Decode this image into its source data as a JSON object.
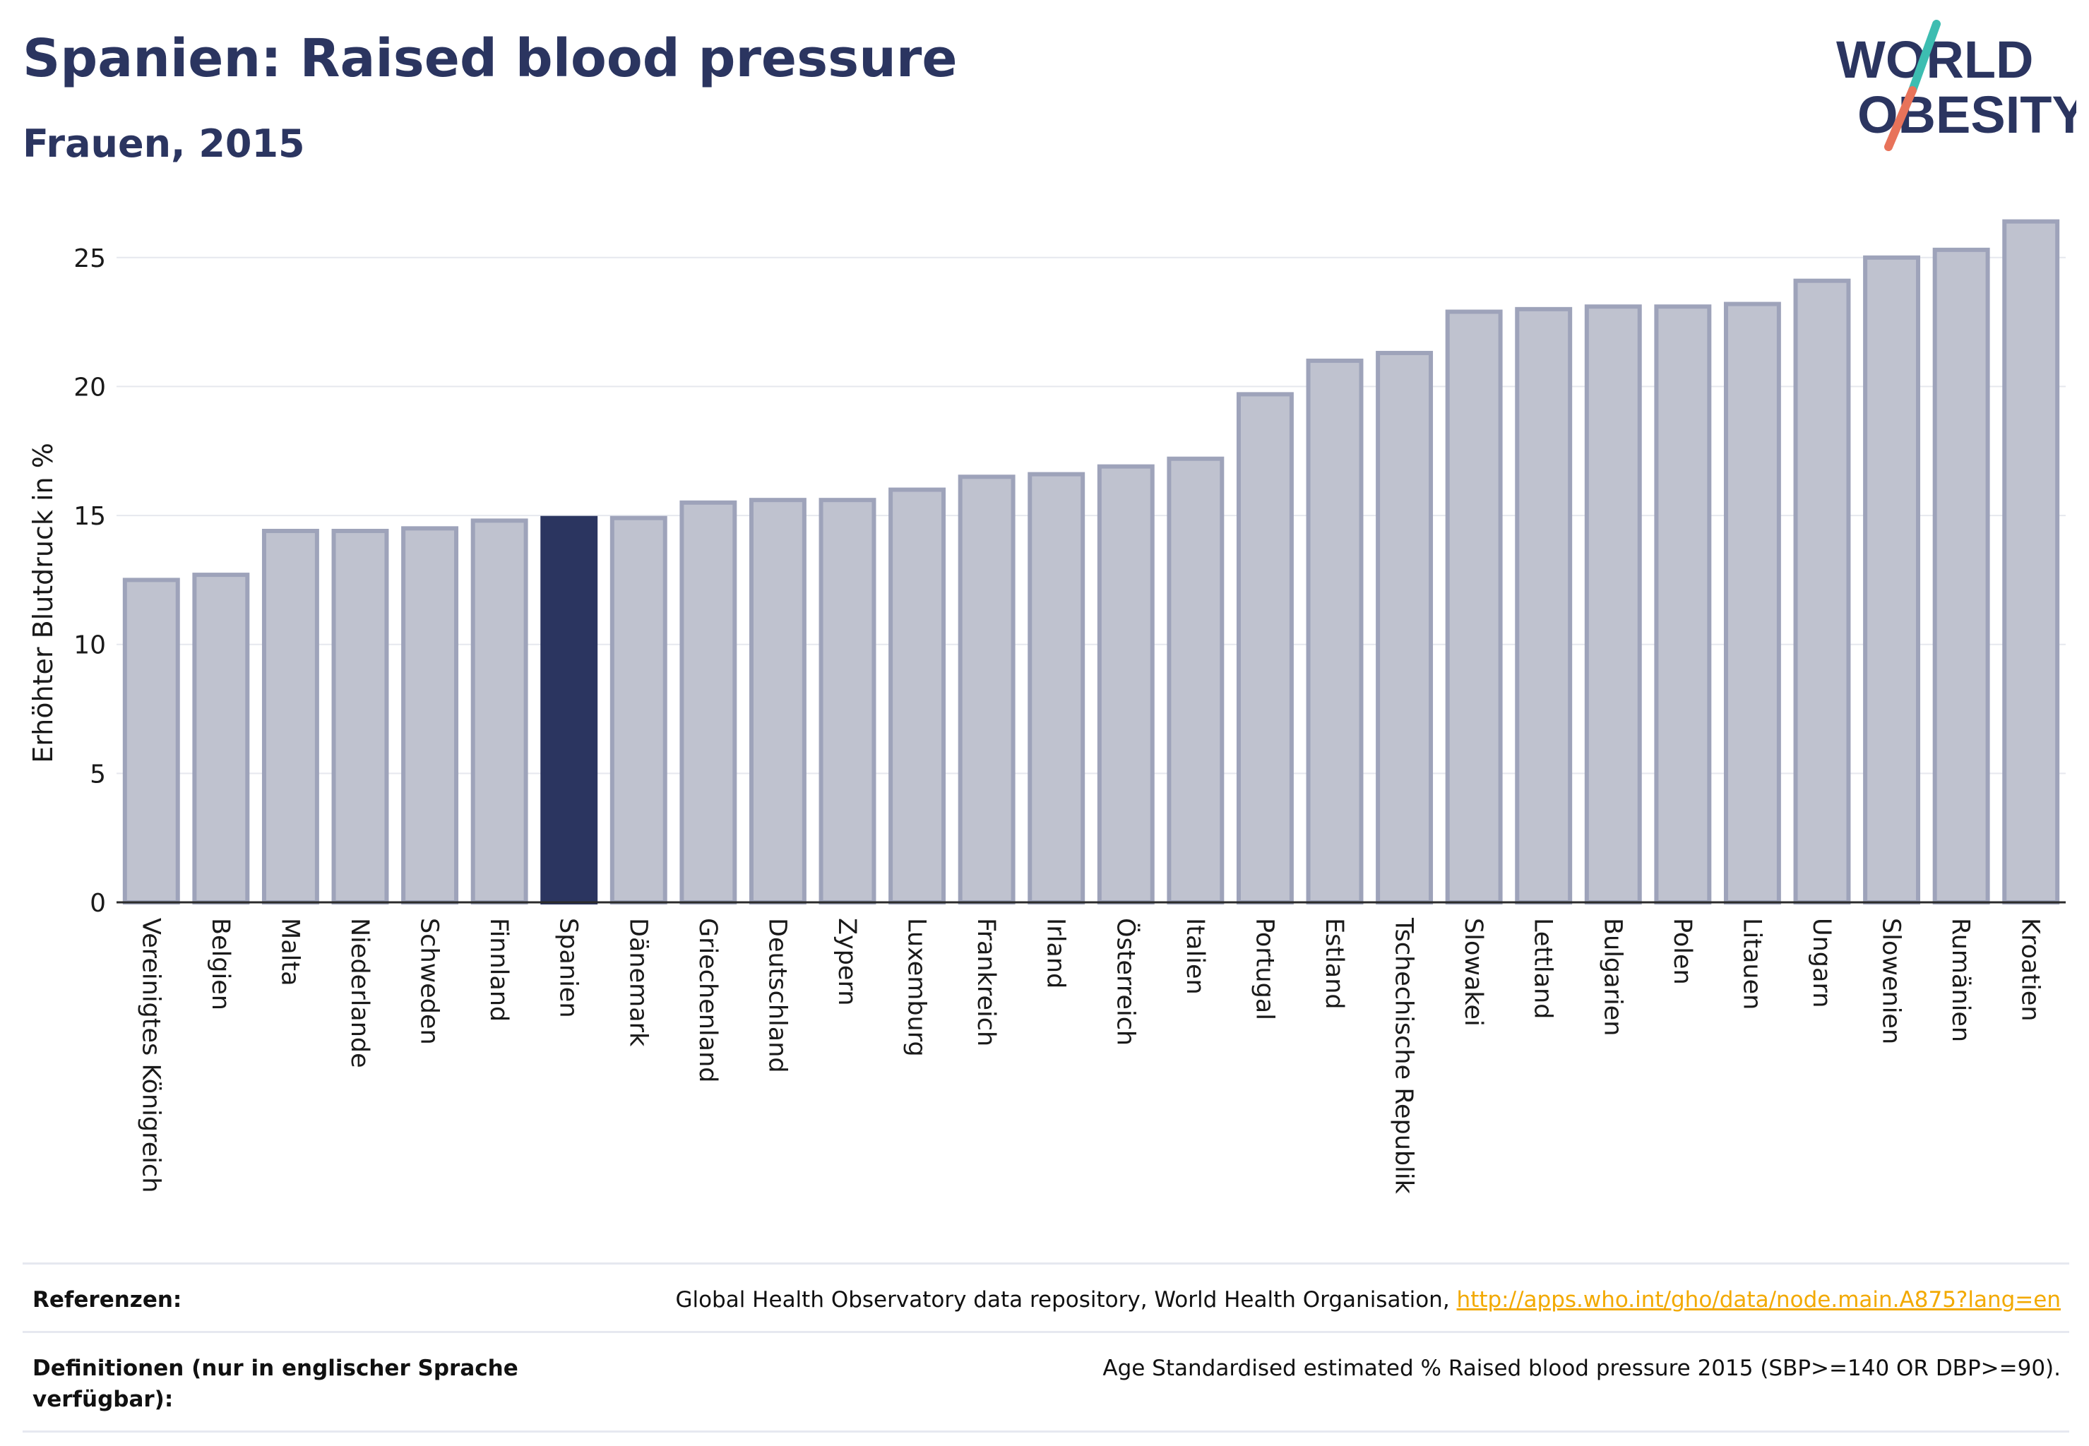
{
  "header": {
    "title": "Spanien: Raised blood pressure",
    "subtitle": "Frauen, 2015"
  },
  "logo": {
    "line1": "WORLD",
    "line2": "OBESITY"
  },
  "colors": {
    "highlight": "#2b3560",
    "bar_fill": "#bfc2cf",
    "bar_stroke": "#9ea3ba",
    "grid": "#e6e8ee",
    "link": "#f2a900",
    "logo_teal": "#3dbdb1",
    "logo_coral": "#e8735a"
  },
  "chart_data": {
    "type": "bar",
    "ylabel": "Erhöhter Blutdruck in %",
    "ylim": [
      0,
      26.5
    ],
    "yticks": [
      0,
      5,
      10,
      15,
      20,
      25
    ],
    "grid": true,
    "highlight": "Spanien",
    "categories": [
      "Vereinigtes Königreich",
      "Belgien",
      "Malta",
      "Niederlande",
      "Schweden",
      "Finnland",
      "Spanien",
      "Dänemark",
      "Griechenland",
      "Deutschland",
      "Zypern",
      "Luxemburg",
      "Frankreich",
      "Irland",
      "Österreich",
      "Italien",
      "Portugal",
      "Estland",
      "Tschechische Republik",
      "Slowakei",
      "Lettland",
      "Bulgarien",
      "Polen",
      "Litauen",
      "Ungarn",
      "Slowenien",
      "Rumänien",
      "Kroatien"
    ],
    "values": [
      12.5,
      12.7,
      14.4,
      14.4,
      14.5,
      14.8,
      14.9,
      14.9,
      15.5,
      15.6,
      15.6,
      16.0,
      16.5,
      16.6,
      16.9,
      17.2,
      19.7,
      21.0,
      21.3,
      22.9,
      23.0,
      23.1,
      23.1,
      23.2,
      24.1,
      25.0,
      25.3,
      26.4
    ]
  },
  "footer": {
    "references_label": "Referenzen:",
    "references_text": "Global Health Observatory data repository, World Health Organisation,",
    "references_link": "http://apps.who.int/gho/data/node.main.A875?lang=en",
    "definitions_label": "Definitionen (nur in englischer Sprache verfügbar):",
    "definitions_text": "Age Standardised estimated % Raised blood pressure 2015 (SBP>=140 OR DBP>=90)."
  }
}
